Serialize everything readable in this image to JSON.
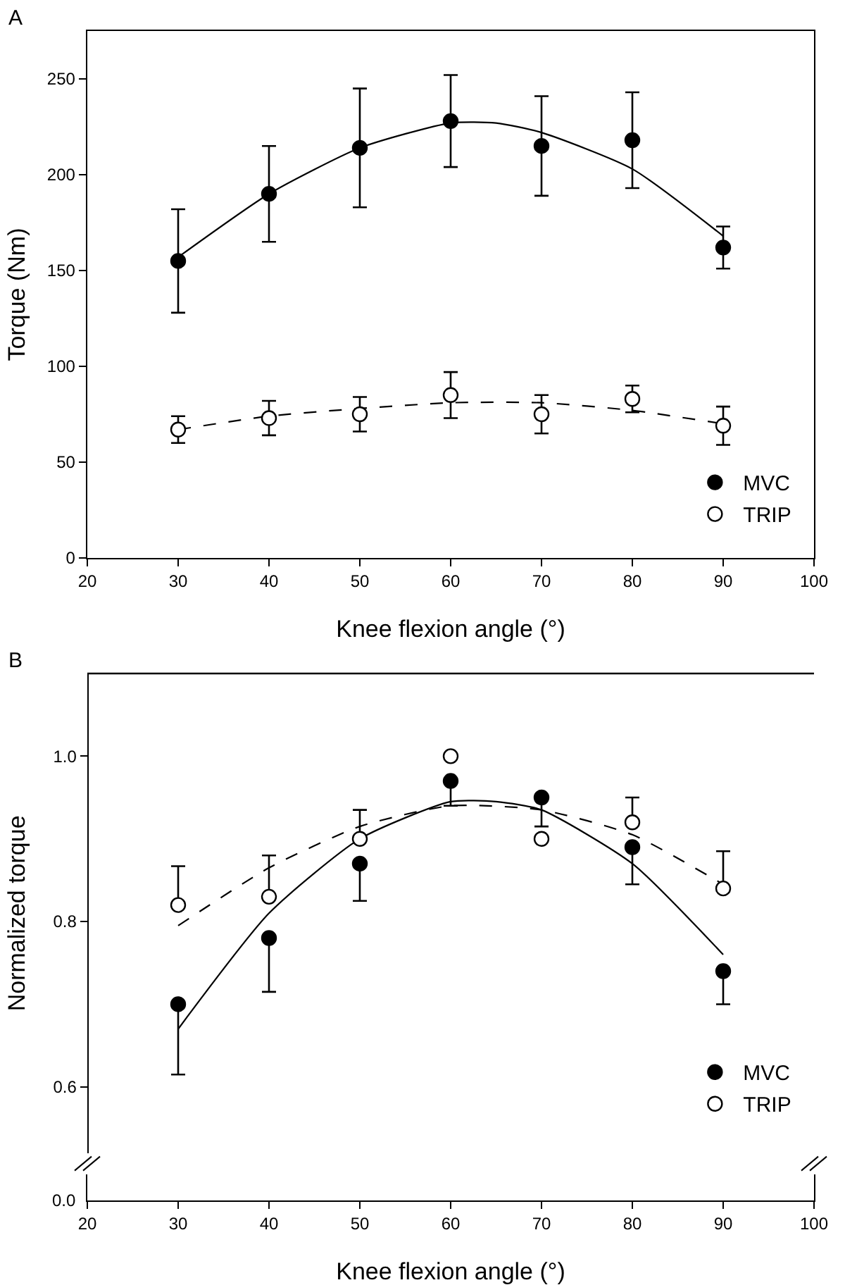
{
  "chart_data": [
    {
      "type": "scatter",
      "title": "A",
      "xlabel": "Knee flexion angle (°)",
      "ylabel": "Torque (Nm)",
      "xlim": [
        20,
        100
      ],
      "xticks": [
        20,
        30,
        40,
        50,
        60,
        70,
        80,
        90,
        100
      ],
      "ylim": [
        0,
        275
      ],
      "yticks": [
        0,
        50,
        100,
        150,
        200,
        250
      ],
      "grid": false,
      "legend": "bottom right",
      "marker": "circle",
      "series": [
        {
          "name": "MVC",
          "color": "#000000",
          "x": [
            30,
            40,
            50,
            60,
            70,
            80,
            90
          ],
          "values": [
            155,
            190,
            214,
            228,
            215,
            218,
            162
          ],
          "errors": [
            27,
            25,
            31,
            24,
            26,
            25,
            11
          ]
        },
        {
          "name": "TRIP",
          "color": "#ffffff",
          "x": [
            30,
            40,
            50,
            60,
            70,
            80,
            90
          ],
          "values": [
            67,
            73,
            75,
            85,
            75,
            83,
            69
          ],
          "errors": [
            7,
            9,
            9,
            12,
            10,
            7,
            10
          ]
        },
        {
          "type": "line",
          "color": "#000000",
          "line_style": "solid",
          "marker": "none",
          "x": [
            30,
            40,
            50,
            60,
            65,
            70,
            80,
            90
          ],
          "values": [
            157,
            190,
            214,
            227,
            227,
            222,
            203,
            168
          ]
        },
        {
          "type": "line",
          "color": "#000000",
          "line_style": "dashed",
          "marker": "none",
          "x": [
            30,
            40,
            50,
            60,
            70,
            80,
            90
          ],
          "values": [
            67,
            74,
            78,
            81,
            81,
            77,
            70
          ]
        }
      ]
    },
    {
      "type": "scatter",
      "title": "B",
      "xlabel": "Knee flexion angle (°)",
      "ylabel": "Normalized torque",
      "xlim": [
        20,
        100
      ],
      "xticks": [
        20,
        30,
        40,
        50,
        60,
        70,
        80,
        90,
        100
      ],
      "ylim": [
        0.52,
        1.1
      ],
      "yticks": [
        {
          "value": 0.6,
          "label": "0.6"
        },
        {
          "value": 0.8,
          "label": "0.8"
        },
        {
          "value": 1.0,
          "label": "1.0"
        }
      ],
      "annotations": [
        "0.0"
      ],
      "grid": false,
      "legend": "bottom right",
      "marker": "circle",
      "series": [
        {
          "name": "MVC",
          "color": "#000000",
          "x": [
            30,
            40,
            50,
            60,
            70,
            80,
            90
          ],
          "values": [
            0.7,
            0.78,
            0.87,
            0.97,
            0.95,
            0.89,
            0.74
          ],
          "errors": [
            [
              0.615,
              0.7
            ],
            [
              0.715,
              0.78
            ],
            [
              0.825,
              0.87
            ],
            [
              0.94,
              0.97
            ],
            [
              0.915,
              0.95
            ],
            [
              0.845,
              0.89
            ],
            [
              0.7,
              0.74
            ]
          ]
        },
        {
          "name": "TRIP",
          "color": "#ffffff",
          "x": [
            30,
            40,
            50,
            60,
            70,
            80,
            90
          ],
          "values": [
            0.82,
            0.83,
            0.9,
            1.0,
            0.9,
            0.92,
            0.84
          ],
          "errors": [
            [
              0.82,
              0.867
            ],
            [
              0.83,
              0.88
            ],
            [
              0.9,
              0.935
            ],
            null,
            null,
            [
              0.92,
              0.95
            ],
            [
              0.84,
              0.885
            ]
          ]
        },
        {
          "type": "line",
          "color": "#000000",
          "line_style": "solid",
          "marker": "none",
          "x": [
            30,
            40,
            50,
            60,
            65,
            70,
            80,
            90
          ],
          "values": [
            0.67,
            0.81,
            0.9,
            0.945,
            0.945,
            0.935,
            0.87,
            0.76
          ]
        },
        {
          "type": "line",
          "color": "#000000",
          "line_style": "dashed",
          "marker": "none",
          "x": [
            30,
            40,
            50,
            60,
            70,
            80,
            90
          ],
          "values": [
            0.795,
            0.865,
            0.915,
            0.94,
            0.935,
            0.905,
            0.845
          ]
        }
      ]
    }
  ]
}
